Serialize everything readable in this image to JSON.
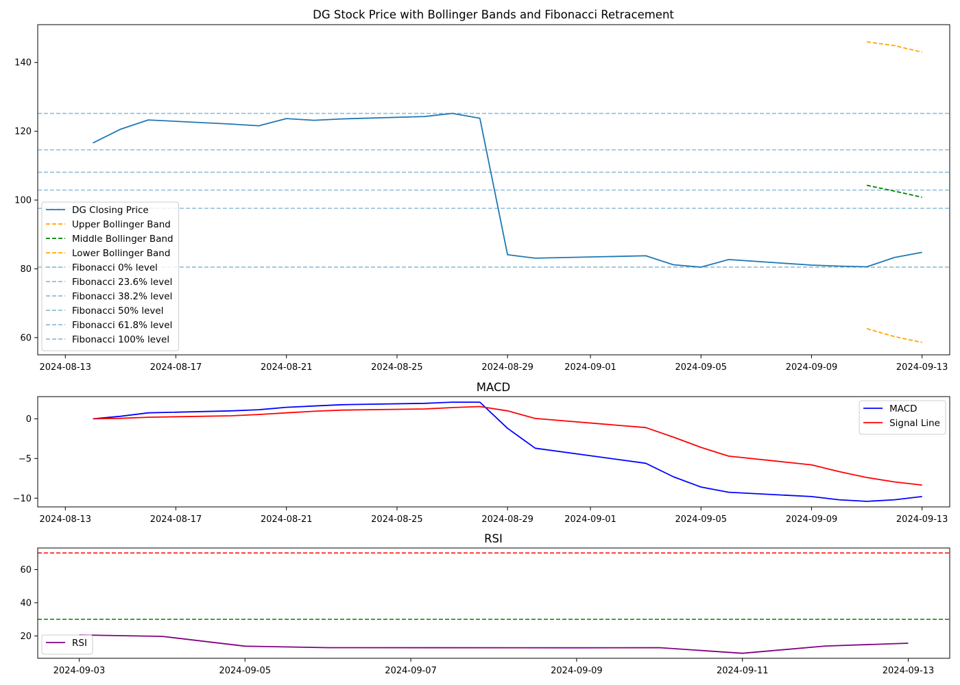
{
  "chart_data": [
    {
      "type": "line",
      "title": "DG Stock Price with Bollinger Bands and Fibonacci Retracement",
      "xlabel": "",
      "ylabel": "",
      "x_tick_labels": [
        "2024-08-13",
        "2024-08-17",
        "2024-08-21",
        "2024-08-25",
        "2024-08-29",
        "2024-09-01",
        "2024-09-05",
        "2024-09-09",
        "2024-09-13"
      ],
      "y_ticks": [
        60,
        80,
        100,
        120,
        140
      ],
      "xlim": [
        "2024-08-12",
        "2024-09-14"
      ],
      "ylim": [
        55,
        151
      ],
      "grid": false,
      "legend_position": "lower-left",
      "series": [
        {
          "name": "DG Closing Price",
          "color": "#1f77b4",
          "style": "solid",
          "x": [
            "2024-08-14",
            "2024-08-15",
            "2024-08-16",
            "2024-08-19",
            "2024-08-20",
            "2024-08-21",
            "2024-08-22",
            "2024-08-23",
            "2024-08-26",
            "2024-08-27",
            "2024-08-28",
            "2024-08-29",
            "2024-08-30",
            "2024-09-03",
            "2024-09-04",
            "2024-09-05",
            "2024-09-06",
            "2024-09-09",
            "2024-09-10",
            "2024-09-11",
            "2024-09-12",
            "2024-09-13"
          ],
          "values": [
            116.6,
            120.6,
            123.3,
            122.1,
            121.6,
            123.7,
            123.2,
            123.6,
            124.3,
            125.2,
            123.8,
            84.1,
            83.1,
            83.8,
            81.2,
            80.5,
            82.7,
            81.1,
            80.8,
            80.6,
            83.3,
            84.8
          ]
        },
        {
          "name": "Upper Bollinger Band",
          "color": "#ffa500",
          "style": "dashed",
          "x": [
            "2024-09-11",
            "2024-09-12",
            "2024-09-13"
          ],
          "values": [
            146.0,
            144.9,
            143.0
          ]
        },
        {
          "name": "Middle Bollinger Band",
          "color": "#008000",
          "style": "dashed",
          "x": [
            "2024-09-11",
            "2024-09-12",
            "2024-09-13"
          ],
          "values": [
            104.3,
            102.6,
            100.8
          ]
        },
        {
          "name": "Lower Bollinger Band",
          "color": "#ffa500",
          "style": "dashed",
          "x": [
            "2024-09-11",
            "2024-09-12",
            "2024-09-13"
          ],
          "values": [
            62.6,
            60.3,
            58.6
          ]
        }
      ],
      "hlines": [
        {
          "name": "Fibonacci 0% level",
          "value": 125.2,
          "color": "#8fbcd8"
        },
        {
          "name": "Fibonacci 23.6% level",
          "value": 114.6,
          "color": "#8fbcd8"
        },
        {
          "name": "Fibonacci 38.2% level",
          "value": 108.1,
          "color": "#8fbcd8"
        },
        {
          "name": "Fibonacci 50% level",
          "value": 102.9,
          "color": "#8fbcd8"
        },
        {
          "name": "Fibonacci 61.8% level",
          "value": 97.6,
          "color": "#8fbcd8"
        },
        {
          "name": "Fibonacci 100% level",
          "value": 80.5,
          "color": "#8fbcd8"
        }
      ]
    },
    {
      "type": "line",
      "title": "MACD",
      "xlabel": "",
      "ylabel": "",
      "x_tick_labels": [
        "2024-08-13",
        "2024-08-17",
        "2024-08-21",
        "2024-08-25",
        "2024-08-29",
        "2024-09-01",
        "2024-09-05",
        "2024-09-09",
        "2024-09-13"
      ],
      "y_ticks": [
        -10,
        -5,
        0
      ],
      "xlim": [
        "2024-08-12",
        "2024-09-14"
      ],
      "ylim": [
        -11.1,
        2.8
      ],
      "grid": false,
      "legend_position": "upper-right",
      "series": [
        {
          "name": "MACD",
          "color": "#0000ff",
          "style": "solid",
          "x": [
            "2024-08-14",
            "2024-08-15",
            "2024-08-16",
            "2024-08-19",
            "2024-08-20",
            "2024-08-21",
            "2024-08-22",
            "2024-08-23",
            "2024-08-26",
            "2024-08-27",
            "2024-08-28",
            "2024-08-29",
            "2024-08-30",
            "2024-09-03",
            "2024-09-04",
            "2024-09-05",
            "2024-09-06",
            "2024-09-09",
            "2024-09-10",
            "2024-09-11",
            "2024-09-12",
            "2024-09-13"
          ],
          "values": [
            0.0,
            0.32,
            0.75,
            1.0,
            1.15,
            1.45,
            1.62,
            1.78,
            1.95,
            2.1,
            2.1,
            -1.2,
            -3.7,
            -5.6,
            -7.3,
            -8.6,
            -9.25,
            -9.8,
            -10.2,
            -10.4,
            -10.2,
            -9.8
          ]
        },
        {
          "name": "Signal Line",
          "color": "#ff0000",
          "style": "solid",
          "x": [
            "2024-08-14",
            "2024-08-15",
            "2024-08-16",
            "2024-08-19",
            "2024-08-20",
            "2024-08-21",
            "2024-08-22",
            "2024-08-23",
            "2024-08-26",
            "2024-08-27",
            "2024-08-28",
            "2024-08-29",
            "2024-08-30",
            "2024-09-03",
            "2024-09-04",
            "2024-09-05",
            "2024-09-06",
            "2024-09-09",
            "2024-09-10",
            "2024-09-11",
            "2024-09-12",
            "2024-09-13"
          ],
          "values": [
            0.0,
            0.06,
            0.2,
            0.38,
            0.55,
            0.75,
            0.95,
            1.1,
            1.25,
            1.42,
            1.55,
            1.0,
            0.05,
            -1.1,
            -2.3,
            -3.6,
            -4.7,
            -5.8,
            -6.65,
            -7.4,
            -7.95,
            -8.35
          ]
        }
      ],
      "hlines": []
    },
    {
      "type": "line",
      "title": "RSI",
      "xlabel": "",
      "ylabel": "",
      "x_tick_labels": [
        "2024-09-03",
        "2024-09-05",
        "2024-09-07",
        "2024-09-09",
        "2024-09-11",
        "2024-09-13"
      ],
      "y_ticks": [
        20,
        40,
        60
      ],
      "xlim": [
        "2024-09-02.5",
        "2024-09-13.5"
      ],
      "ylim": [
        6.5,
        73
      ],
      "grid": false,
      "legend_position": "lower-left",
      "series": [
        {
          "name": "RSI",
          "color": "#800080",
          "style": "solid",
          "x": [
            "2024-09-03",
            "2024-09-04",
            "2024-09-05",
            "2024-09-06",
            "2024-09-09",
            "2024-09-10",
            "2024-09-11",
            "2024-09-12",
            "2024-09-13"
          ],
          "values": [
            20.6,
            19.7,
            13.8,
            12.9,
            12.8,
            12.9,
            9.5,
            13.9,
            15.6
          ]
        }
      ],
      "hlines": [
        {
          "name": "",
          "value": 70,
          "color": "#ff0000"
        },
        {
          "name": "",
          "value": 30,
          "color": "#008000"
        }
      ]
    }
  ]
}
